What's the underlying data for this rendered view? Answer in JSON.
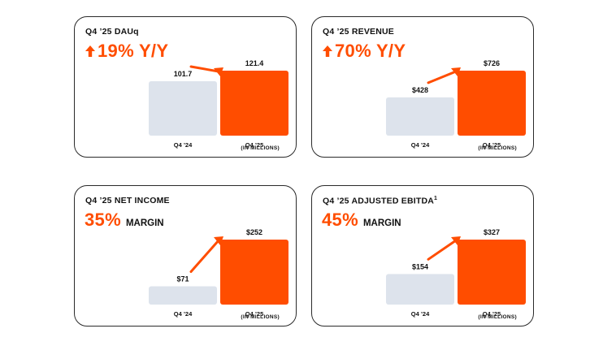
{
  "colors": {
    "accent": "#ff4d00",
    "prior": "#dde3ec",
    "text": "#111111",
    "border": "#2a2a2a"
  },
  "cards": [
    {
      "title": "Q4 ’25 DAUq",
      "title_sup": "",
      "headline": {
        "arrow": "up-arrow-icon",
        "value": "19% Y/Y",
        "suffix": ""
      },
      "units": "(IN MILLIONS)"
    },
    {
      "title": "Q4 ’25 REVENUE",
      "title_sup": "",
      "headline": {
        "arrow": "up-arrow-icon",
        "value": "70% Y/Y",
        "suffix": ""
      },
      "units": "(IN MILLIONS)"
    },
    {
      "title": "Q4 ’25 NET INCOME",
      "title_sup": "",
      "headline": {
        "arrow": "",
        "value": "35%",
        "suffix": "MARGIN"
      },
      "units": "(IN MILLIONS)"
    },
    {
      "title": "Q4 ’25 ADJUSTED EBITDA",
      "title_sup": "1",
      "headline": {
        "arrow": "",
        "value": "45%",
        "suffix": "MARGIN"
      },
      "units": "(IN MILLIONS)"
    }
  ],
  "chart_data": [
    {
      "type": "bar",
      "title": "Q4 ’25 DAUq",
      "categories": [
        "Q4 ’24",
        "Q4 ’25"
      ],
      "values": [
        101.7,
        121.4
      ],
      "value_labels": [
        "101.7",
        "121.4"
      ],
      "ylim": [
        0,
        121.4
      ]
    },
    {
      "type": "bar",
      "title": "Q4 ’25 REVENUE",
      "categories": [
        "Q4 ’24",
        "Q4 ’25"
      ],
      "values": [
        428,
        726
      ],
      "value_labels": [
        "$428",
        "$726"
      ],
      "ylim": [
        0,
        726
      ]
    },
    {
      "type": "bar",
      "title": "Q4 ’25 NET INCOME",
      "categories": [
        "Q4 ’24",
        "Q4 ’25"
      ],
      "values": [
        71,
        252
      ],
      "value_labels": [
        "$71",
        "$252"
      ],
      "ylim": [
        0,
        252
      ]
    },
    {
      "type": "bar",
      "title": "Q4 ’25 ADJUSTED EBITDA",
      "categories": [
        "Q4 ’24",
        "Q4 ’25"
      ],
      "values": [
        154,
        327
      ],
      "value_labels": [
        "$154",
        "$327"
      ],
      "ylim": [
        0,
        327
      ]
    }
  ]
}
